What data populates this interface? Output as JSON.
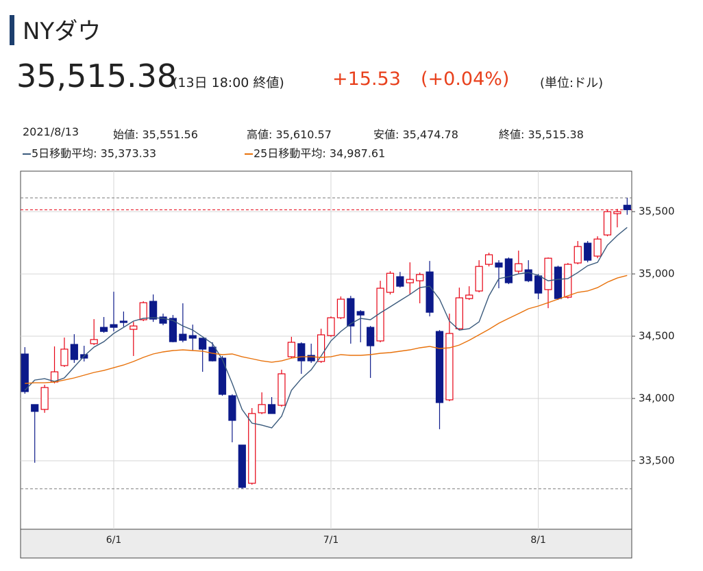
{
  "header": {
    "title": "NYダウ",
    "price": "35,515.38",
    "time": "(13日 18:00 終値)",
    "change": "+15.53",
    "change_pct": "(+0.04%)",
    "unit": "(単位:ドル)",
    "date": "2021/8/13",
    "open": "始値: 35,551.56",
    "high": "高値: 35,610.57",
    "low": "安値: 35,474.78",
    "close": "終値: 35,515.38"
  },
  "chart_data": {
    "type": "candlestick",
    "categories": [
      null,
      null,
      null,
      null,
      null,
      null,
      null,
      null,
      null,
      "6/1",
      null,
      null,
      null,
      null,
      null,
      null,
      null,
      null,
      null,
      null,
      null,
      null,
      null,
      null,
      null,
      null,
      null,
      null,
      null,
      null,
      null,
      "7/1",
      null,
      null,
      null,
      null,
      null,
      null,
      null,
      null,
      null,
      null,
      null,
      null,
      null,
      null,
      null,
      null,
      null,
      null,
      null,
      null,
      "8/1",
      null,
      null,
      null,
      null,
      null,
      null,
      null,
      null,
      null
    ],
    "open": [
      34357,
      33951,
      33912,
      34132,
      34264,
      34434,
      34352,
      34440,
      34571,
      34593,
      34621,
      34555,
      34632,
      34780,
      34654,
      34643,
      34516,
      34505,
      34484,
      34412,
      34324,
      34022,
      33626,
      33319,
      33885,
      33951,
      33945,
      34335,
      34440,
      34346,
      34297,
      34505,
      34648,
      34802,
      34698,
      34571,
      34462,
      34852,
      34978,
      34929,
      34945,
      35016,
      34538,
      33989,
      34560,
      34802,
      34863,
      35077,
      35088,
      35121,
      35022,
      35033,
      34984,
      34874,
      35055,
      34813,
      35088,
      35247,
      35143,
      35313,
      35484,
      35551.56
    ],
    "high": [
      34412,
      33951,
      34110,
      34418,
      34489,
      34516,
      34423,
      34637,
      34654,
      34857,
      34698,
      34615,
      34780,
      34835,
      34681,
      34670,
      34764,
      34593,
      34484,
      34451,
      34341,
      34033,
      33626,
      33923,
      34049,
      34011,
      34231,
      34495,
      34451,
      34440,
      34560,
      34659,
      34819,
      34824,
      34709,
      34582,
      34945,
      35022,
      35016,
      35093,
      35011,
      35104,
      34549,
      34681,
      34890,
      34901,
      35110,
      35170,
      35110,
      35132,
      35187,
      35110,
      35000,
      35132,
      35066,
      35088,
      35264,
      35264,
      35302,
      35511,
      35522,
      35610.57
    ],
    "low": [
      34038,
      33484,
      33885,
      34121,
      34253,
      34286,
      34297,
      34429,
      34527,
      34538,
      34577,
      34341,
      34621,
      34615,
      34588,
      34451,
      34451,
      34385,
      34214,
      34297,
      34022,
      33648,
      33275,
      33308,
      33874,
      33879,
      33934,
      34324,
      34198,
      34286,
      34286,
      34495,
      34637,
      34440,
      34451,
      34165,
      34451,
      34835,
      34890,
      34835,
      34764,
      34659,
      33753,
      33978,
      34549,
      34791,
      34852,
      35060,
      34885,
      34918,
      35000,
      34934,
      34797,
      34725,
      34791,
      34802,
      35077,
      35093,
      35126,
      35302,
      35374,
      35474.78
    ],
    "close": [
      34055,
      33896,
      34088,
      34214,
      34396,
      34313,
      34324,
      34473,
      34538,
      34571,
      34610,
      34582,
      34769,
      34637,
      34604,
      34456,
      34467,
      34484,
      34396,
      34302,
      34033,
      33824,
      33286,
      33879,
      33951,
      33879,
      34198,
      34451,
      34302,
      34302,
      34511,
      34648,
      34797,
      34582,
      34670,
      34423,
      34885,
      35005,
      34901,
      34956,
      34995,
      34692,
      33967,
      34522,
      34808,
      34830,
      35060,
      35154,
      35055,
      34929,
      35082,
      34945,
      34846,
      35126,
      34802,
      35077,
      35220,
      35110,
      35280,
      35500,
      35500,
      35515.38
    ],
    "up_color": "#e60012",
    "down_color": "#0c1a8a",
    "series": [
      {
        "name": "5日移動平均: 35,373.33",
        "color": "#3a5a7c",
        "values": [
          34066,
          34148,
          34159,
          34137,
          34165,
          34253,
          34341,
          34412,
          34456,
          34522,
          34571,
          34621,
          34643,
          34648,
          34643,
          34626,
          34582,
          34549,
          34495,
          34440,
          34313,
          34121,
          33912,
          33802,
          33786,
          33764,
          33857,
          34066,
          34159,
          34231,
          34341,
          34462,
          34538,
          34599,
          34643,
          34632,
          34687,
          34736,
          34786,
          34835,
          34890,
          34901,
          34797,
          34621,
          34549,
          34560,
          34615,
          34824,
          34962,
          34978,
          35000,
          35011,
          34989,
          34945,
          34956,
          34962,
          35011,
          35066,
          35093,
          35231,
          35308,
          35373.33
        ]
      },
      {
        "name": "25日移動平均: 34,987.61",
        "color": "#e8710a",
        "values": [
          34121,
          34126,
          34126,
          34132,
          34148,
          34165,
          34187,
          34209,
          34225,
          34247,
          34269,
          34297,
          34330,
          34357,
          34374,
          34385,
          34390,
          34385,
          34379,
          34363,
          34352,
          34357,
          34335,
          34319,
          34302,
          34291,
          34302,
          34324,
          34335,
          34335,
          34330,
          34335,
          34352,
          34346,
          34346,
          34352,
          34363,
          34368,
          34379,
          34390,
          34407,
          34418,
          34401,
          34407,
          34429,
          34467,
          34511,
          34555,
          34604,
          34643,
          34681,
          34720,
          34742,
          34769,
          34797,
          34824,
          34852,
          34863,
          34890,
          34934,
          34967,
          34987.61
        ]
      }
    ],
    "ylim": [
      32950,
      35825
    ],
    "yticks": [
      {
        "value": 33500,
        "label": "33,500"
      },
      {
        "value": 34000,
        "label": "34,000"
      },
      {
        "value": 34500,
        "label": "34,500"
      },
      {
        "value": 35000,
        "label": "35,000"
      },
      {
        "value": 35500,
        "label": "35,500"
      }
    ],
    "grid": true
  }
}
